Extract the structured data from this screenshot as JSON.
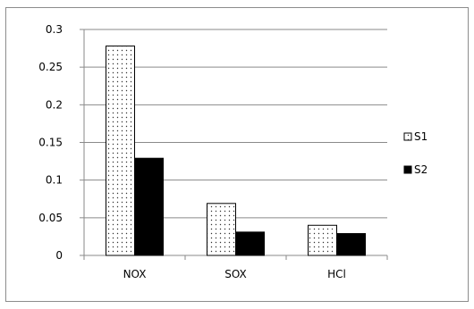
{
  "chart_data": {
    "type": "bar",
    "categories": [
      "NOX",
      "SOX",
      "HCl"
    ],
    "series": [
      {
        "name": "S1",
        "values": [
          0.278,
          0.069,
          0.04
        ],
        "fill": "dotted-white"
      },
      {
        "name": "S2",
        "values": [
          0.129,
          0.031,
          0.029
        ],
        "fill": "#000000"
      }
    ],
    "yticks": [
      "0",
      "0.05",
      "0.1",
      "0.15",
      "0.2",
      "0.25",
      "0.3"
    ],
    "ylim": [
      0,
      0.3
    ],
    "grid": true,
    "legend": "right",
    "title": "",
    "xlabel": "",
    "ylabel": ""
  }
}
